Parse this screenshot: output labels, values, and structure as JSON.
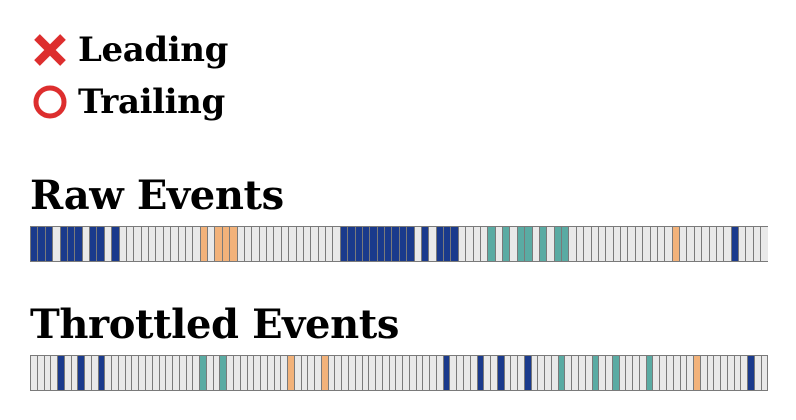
{
  "options": [
    {
      "label": "Leading",
      "icon": "cross-mark-icon",
      "color": "#dd2e2e"
    },
    {
      "label": "Trailing",
      "icon": "hollow-circle-icon",
      "color": "#dd2e2e"
    }
  ],
  "raw": {
    "title": "Raw Events",
    "cells": "BBBGBBBGBBGBGGGGGGGGGGGOGOOOGGGGGGGGGGGGGGBBBBBBBBBBGBGBBBGGGGTGTGTTGTGTTGGGGGGGGGGGGGGOGGGGGGGBGGGG"
  },
  "throttled": {
    "title": "Throttled Events",
    "cells": "GGGGBGGBGGBGGGGGGGGGGGGGGTGGTGGGGGGGGGOGGGGOGGGGGGGGGGGGGGGGGBGGGGBGGBGGGBGGGGTGGGGTGGTGGGGTGGGGGGOGGGGGGGBGG"
  },
  "palette": {
    "B": "#1a3a8c",
    "T": "#5aaba3",
    "O": "#f2b27a",
    "G": "#e9e9e9"
  }
}
